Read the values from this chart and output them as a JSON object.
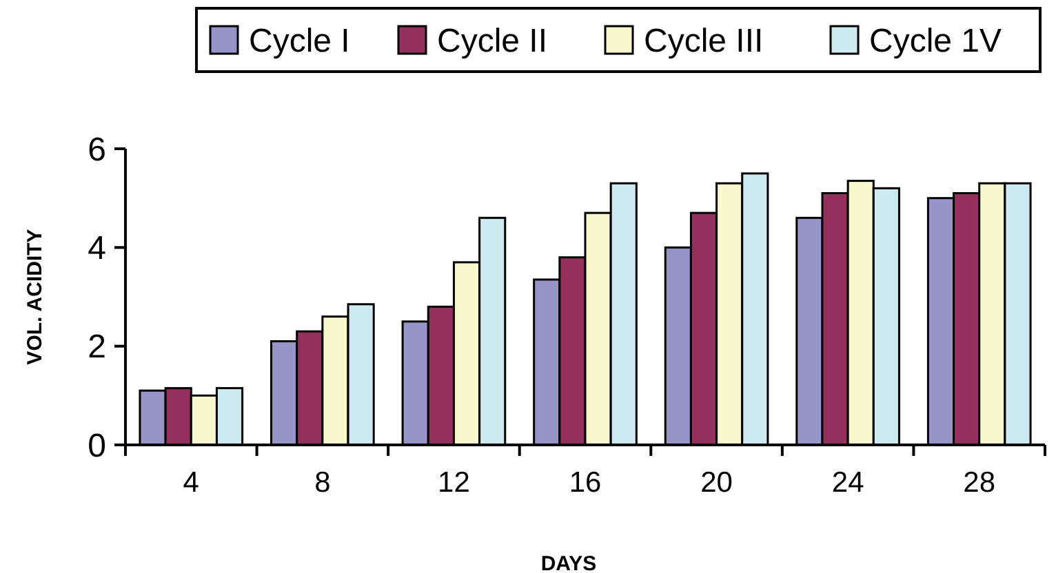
{
  "chart_data": {
    "type": "bar",
    "xlabel": "DAYS",
    "ylabel": "VOL. ACIDITY",
    "categories": [
      "4",
      "8",
      "12",
      "16",
      "20",
      "24",
      "28"
    ],
    "series": [
      {
        "name": "Cycle I",
        "color": "#9794c8",
        "values": [
          1.1,
          2.1,
          2.5,
          3.35,
          4,
          4.6,
          5
        ]
      },
      {
        "name": "Cycle II",
        "color": "#93305e",
        "values": [
          1.15,
          2.3,
          2.8,
          3.8,
          4.7,
          5.1,
          5.1
        ]
      },
      {
        "name": "Cycle III",
        "color": "#f8f6cc",
        "values": [
          1,
          2.6,
          3.7,
          4.7,
          5.3,
          5.35,
          5.3
        ]
      },
      {
        "name": "Cycle 1V",
        "color": "#cdeaf0",
        "values": [
          1.15,
          2.85,
          4.6,
          5.3,
          5.5,
          5.2,
          5.3
        ]
      }
    ],
    "ylim": [
      0,
      6
    ],
    "yticks": [
      0,
      2,
      4,
      6
    ],
    "grid": false,
    "legend": "top"
  }
}
